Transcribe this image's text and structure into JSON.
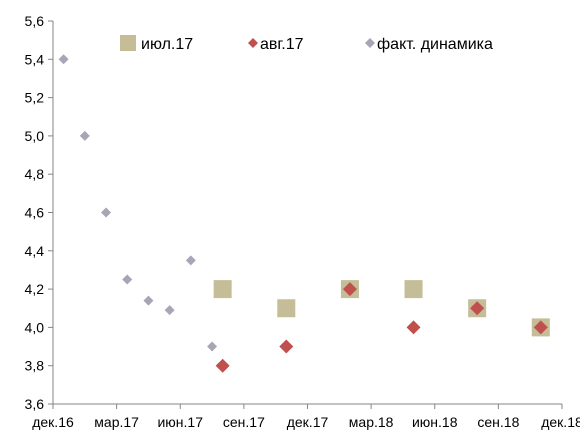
{
  "chart_data": {
    "type": "scatter",
    "title": "",
    "xlabel": "",
    "ylabel": "",
    "x_categories": [
      "дек.16",
      "мар.17",
      "июн.17",
      "сен.17",
      "дек.17",
      "мар.18",
      "июн.18",
      "сен.18",
      "дек.18"
    ],
    "xlim": [
      0,
      24
    ],
    "ylim": [
      3.6,
      5.6
    ],
    "y_ticks": [
      3.6,
      3.8,
      4.0,
      4.2,
      4.4,
      4.6,
      4.8,
      5.0,
      5.2,
      5.4,
      5.6
    ],
    "y_tick_labels": [
      "3,6",
      "3,8",
      "4,0",
      "4,2",
      "4,4",
      "4,6",
      "4,8",
      "5,0",
      "5,2",
      "5,4",
      "5,6"
    ],
    "grid": false,
    "legend_position": "top",
    "series": [
      {
        "name": "июл.17",
        "marker": "square",
        "color": "#c4bd97",
        "points": [
          {
            "x": 8,
            "y": 4.2
          },
          {
            "x": 11,
            "y": 4.1
          },
          {
            "x": 14,
            "y": 4.2
          },
          {
            "x": 17,
            "y": 4.2
          },
          {
            "x": 20,
            "y": 4.1
          },
          {
            "x": 23,
            "y": 4.0
          }
        ]
      },
      {
        "name": "авг.17",
        "marker": "diamond",
        "color": "#c0504d",
        "points": [
          {
            "x": 8,
            "y": 3.8
          },
          {
            "x": 11,
            "y": 3.9
          },
          {
            "x": 14,
            "y": 4.2
          },
          {
            "x": 17,
            "y": 4.0
          },
          {
            "x": 20,
            "y": 4.1
          },
          {
            "x": 23,
            "y": 4.0
          }
        ]
      },
      {
        "name": "факт. динамика",
        "marker": "diamond-small",
        "color": "#a6a6b6",
        "points": [
          {
            "x": 0.5,
            "y": 5.4
          },
          {
            "x": 1.5,
            "y": 5.0
          },
          {
            "x": 2.5,
            "y": 4.6
          },
          {
            "x": 3.5,
            "y": 4.25
          },
          {
            "x": 4.5,
            "y": 4.14
          },
          {
            "x": 5.5,
            "y": 4.09
          },
          {
            "x": 6.5,
            "y": 4.35
          },
          {
            "x": 7.5,
            "y": 3.9
          }
        ]
      }
    ]
  }
}
